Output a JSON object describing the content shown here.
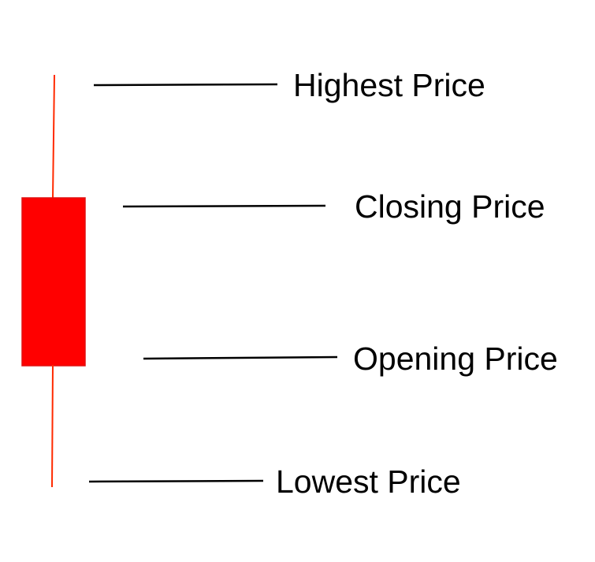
{
  "colors": {
    "candle_body": "#ff0000",
    "candle_wick": "#ff2a00",
    "leader_lines": "#000000",
    "text": "#000000",
    "background": "#ffffff"
  },
  "candle": {
    "type": "bearish",
    "description_parts": [
      "upper-wick",
      "body",
      "lower-wick"
    ]
  },
  "labels": {
    "high": "Highest Price",
    "close": "Closing Price",
    "open": "Opening Price",
    "low": "Lowest Price"
  }
}
